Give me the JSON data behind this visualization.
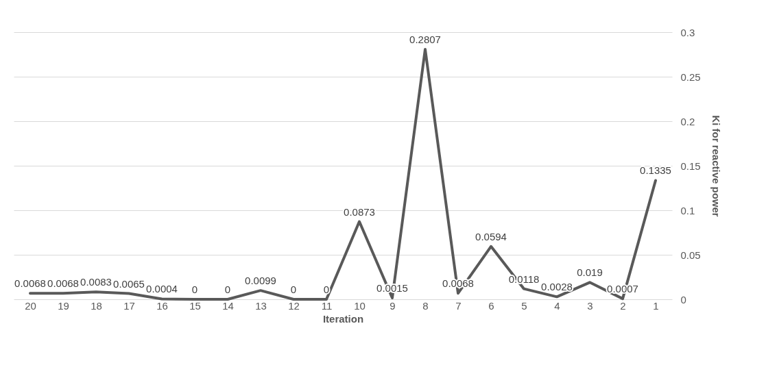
{
  "chart_data": {
    "type": "line",
    "xlabel": "Iteration",
    "ylabel": "Ki for reactive power",
    "categories": [
      "20",
      "19",
      "18",
      "17",
      "16",
      "15",
      "14",
      "13",
      "12",
      "11",
      "10",
      "9",
      "8",
      "7",
      "6",
      "5",
      "4",
      "3",
      "2",
      "1"
    ],
    "series": [
      {
        "color": "#595959",
        "values": [
          0.0068,
          0.0068,
          0.0083,
          0.0065,
          0.0004,
          0,
          0,
          0.0099,
          0,
          0,
          0.0873,
          0.0015,
          0.2807,
          0.0068,
          0.0594,
          0.0118,
          0.0028,
          0.019,
          0.0007,
          0.1335
        ]
      }
    ],
    "ylim": [
      0,
      0.3
    ],
    "yticks": [
      0,
      0.05,
      0.1,
      0.15,
      0.2,
      0.25,
      0.3
    ],
    "grid": "y",
    "data_labels": true,
    "legend": false,
    "marker": "none",
    "line_style": "solid"
  }
}
